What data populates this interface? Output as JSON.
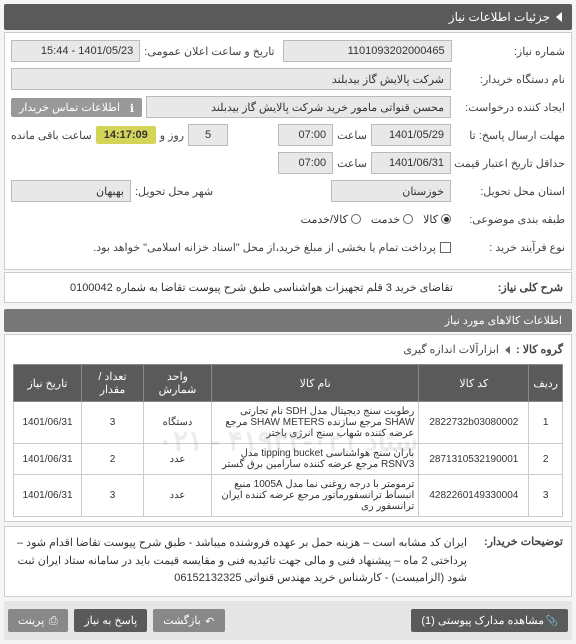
{
  "header": {
    "title": "جزئیات اطلاعات نیاز"
  },
  "form": {
    "need_no_lbl": "شماره نیاز:",
    "need_no": "1101093202000465",
    "announce_dt_lbl": "تاریخ و ساعت اعلان عمومی:",
    "announce_dt": "1401/05/23 - 15:44",
    "buyer_name_lbl": "نام دستگاه خریدار:",
    "buyer_name": "شرکت پالایش گاز بیدبلند",
    "requester_lbl": "ایجاد کننده درخواست:",
    "requester": "محسن قنواتی مامور خرید شرکت پالایش گاز بیدبلند",
    "contact_badge": "اطلاعات تماس خریدار",
    "deadline_lbl": "مهلت ارسال پاسخ:",
    "deadline_suffix": "تا",
    "deadline_date": "1401/05/29",
    "time_lbl": "ساعت",
    "deadline_time": "07:00",
    "days": "5",
    "day_lbl": "روز و",
    "remain_time": "14:17:09",
    "remain_lbl": "ساعت باقی مانده",
    "valid_lbl": "حداقل تاریخ اعتبار قیمت تا تاریخ:",
    "valid_date": "1401/06/31",
    "valid_time": "07:00",
    "province_lbl": "استان محل تحویل:",
    "province": "خوزستان",
    "city_lbl": "شهر محل تحویل:",
    "city": "بهبهان",
    "budget_lbl": "طبقه بندی موضوعی:",
    "budget_opts": {
      "a": "کالا",
      "b": "خدمت",
      "c": "کالا/خدمت"
    },
    "process_lbl": "نوع فرآیند خرید :",
    "process_txt": "پرداخت تمام یا بخشی از مبلغ خرید،از محل \"اسناد خزانه اسلامی\" خواهد بود."
  },
  "desc": {
    "title_lbl": "شرح کلی نیاز:",
    "text": "تقاضای خرید 3 قلم تجهیزات هواشناسی طبق شرح پیوست تقاضا به شماره 0100042"
  },
  "items": {
    "section_title": "اطلاعات کالاهای مورد نیاز",
    "group_lbl": "گروه کالا :",
    "group": "ابزارآلات اندازه گیری",
    "columns": [
      "ردیف",
      "کد کالا",
      "نام کالا",
      "واحد شمارش",
      "تعداد / مقدار",
      "تاریخ نیاز"
    ],
    "col_widths": [
      "28px",
      "110px",
      "auto",
      "68px",
      "62px",
      "68px"
    ],
    "rows": [
      {
        "n": "1",
        "code": "2822732b03080002",
        "name": "رطوبت سنج دیجیتال مدل SDH نام تجارتی SHAW مرجع سازنده SHAW METERS مرجع عرضه کننده شهاب سنج انرژی باختر",
        "unit": "دستگاه",
        "qty": "3",
        "date": "1401/06/31"
      },
      {
        "n": "2",
        "code": "2871310532190001",
        "name": "باران سنج هواشناسی tipping bucket مدل RSNV3 مرجع عرضه کننده سارامین برق گستر",
        "unit": "عدد",
        "qty": "2",
        "date": "1401/06/31"
      },
      {
        "n": "3",
        "code": "4282260149330004",
        "name": "ترمومتر با درجه روغنی نما مدل 1005A منبع انبساط ترانسفورماتور مرجع عرضه کننده ایران ترانسفور ری",
        "unit": "عدد",
        "qty": "3",
        "date": "1401/06/31"
      }
    ]
  },
  "notes": {
    "lbl": "توضیحات خریدار:",
    "text": "ایران کد مشابه است – هزینه حمل بر عهده فروشنده میباشد -  طبق شرح پیوست تقاضا اقدام شود – پرداختی 2 ماه – پیشنهاد فنی و مالی جهت تائیدیه فنی و مقایسه قیمت باید در سامانه ستاد ایران ثبت شود (الزامیست) - کارشناس خرید  مهندس قنواتی 06152132325"
  },
  "footer": {
    "attach": "مشاهده مدارک پیوستی (1)",
    "back": "بازگشت",
    "reply": "پاسخ به نیاز",
    "print": "پرینت"
  },
  "watermark": "ستاد ۰۲۱-۴۱۹۳۴ - ۰۲۱"
}
